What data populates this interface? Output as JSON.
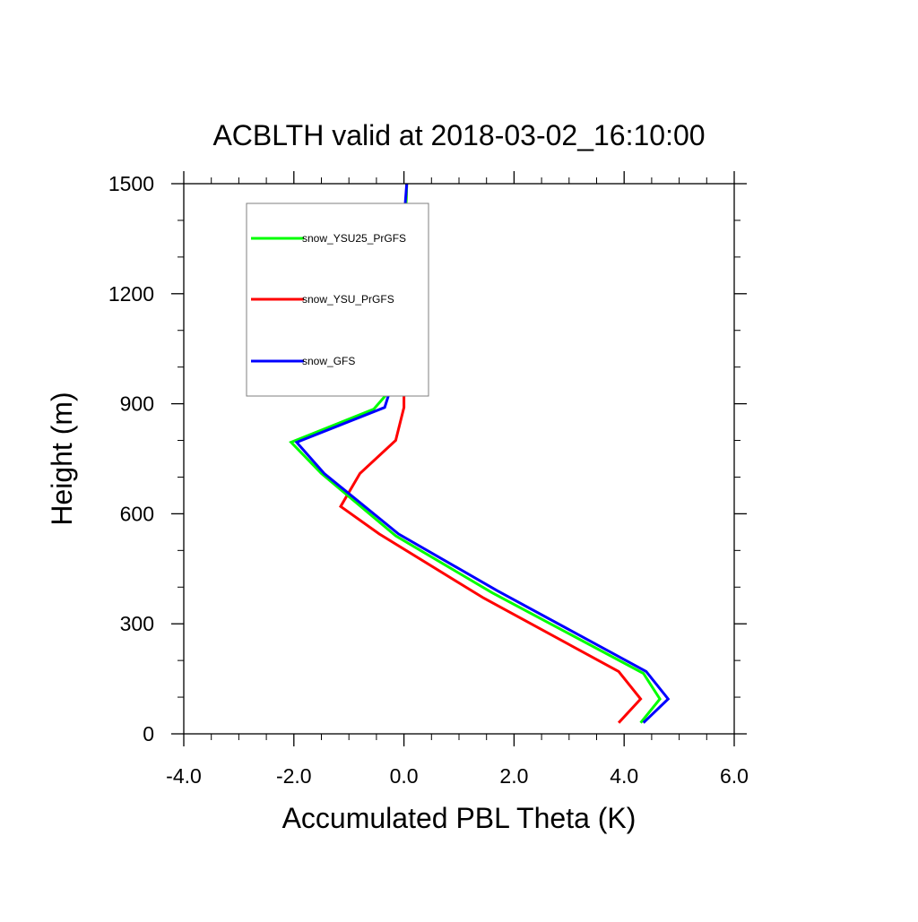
{
  "chart_data": {
    "type": "line",
    "title": "ACBLTH valid at 2018-03-02_16:10:00",
    "xlabel": "Accumulated PBL Theta (K)",
    "ylabel": "Height (m)",
    "xlim": [
      -4.0,
      6.0
    ],
    "ylim": [
      0,
      1500
    ],
    "x_ticks": [
      -4.0,
      -2.0,
      0.0,
      2.0,
      4.0,
      6.0
    ],
    "x_tick_labels": [
      "-4.0",
      "-2.0",
      "0.0",
      "2.0",
      "4.0",
      "6.0"
    ],
    "y_ticks": [
      0,
      300,
      600,
      900,
      1200,
      1500
    ],
    "y_tick_labels": [
      "0",
      "300",
      "600",
      "900",
      "1200",
      "1500"
    ],
    "grid": false,
    "legend_position": "top-left",
    "series": [
      {
        "name": "snow_YSU25_PrGFS",
        "color": "#00ff00",
        "points": [
          [
            4.3,
            30
          ],
          [
            4.65,
            95
          ],
          [
            4.35,
            165
          ],
          [
            1.6,
            385
          ],
          [
            -0.15,
            540
          ],
          [
            -1.5,
            710
          ],
          [
            -2.05,
            795
          ],
          [
            -0.55,
            885
          ],
          [
            0.0,
            980
          ],
          [
            0.0,
            1100
          ],
          [
            0.02,
            1250
          ],
          [
            0.03,
            1400
          ],
          [
            0.05,
            1500
          ]
        ]
      },
      {
        "name": "snow_YSU_PrGFS",
        "color": "#ff0000",
        "points": [
          [
            3.9,
            30
          ],
          [
            4.3,
            95
          ],
          [
            3.9,
            170
          ],
          [
            1.45,
            370
          ],
          [
            -0.45,
            545
          ],
          [
            -1.15,
            620
          ],
          [
            -0.8,
            710
          ],
          [
            -0.15,
            800
          ],
          [
            0.0,
            890
          ],
          [
            0.0,
            980
          ],
          [
            0.0,
            1100
          ],
          [
            0.02,
            1250
          ],
          [
            0.03,
            1400
          ],
          [
            0.05,
            1500
          ]
        ]
      },
      {
        "name": "snow_GFS",
        "color": "#0000ff",
        "points": [
          [
            4.35,
            30
          ],
          [
            4.8,
            95
          ],
          [
            4.4,
            170
          ],
          [
            1.7,
            390
          ],
          [
            -0.1,
            545
          ],
          [
            -1.45,
            710
          ],
          [
            -1.95,
            795
          ],
          [
            -0.35,
            890
          ],
          [
            -0.15,
            985
          ],
          [
            -0.08,
            1100
          ],
          [
            -0.03,
            1250
          ],
          [
            0.0,
            1400
          ],
          [
            0.05,
            1500
          ]
        ]
      }
    ]
  }
}
